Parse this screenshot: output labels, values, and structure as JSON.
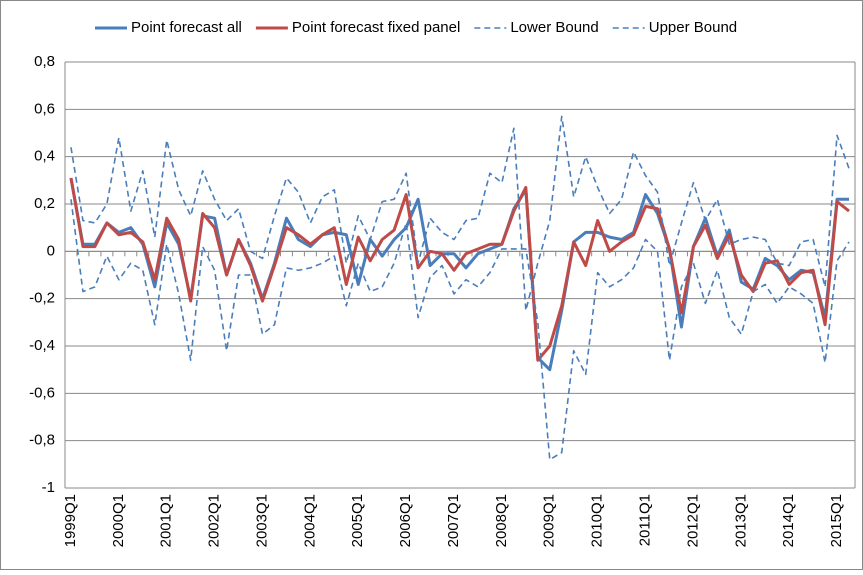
{
  "chart_data": {
    "type": "line",
    "categories": [
      "1999Q1",
      null,
      null,
      null,
      "2000Q1",
      null,
      null,
      null,
      "2001Q1",
      null,
      null,
      null,
      "2002Q1",
      null,
      null,
      null,
      "2003Q1",
      null,
      null,
      null,
      "2004Q1",
      null,
      null,
      null,
      "2005Q1",
      null,
      null,
      null,
      "2006Q1",
      null,
      null,
      null,
      "2007Q1",
      null,
      null,
      null,
      "2008Q1",
      null,
      null,
      null,
      "2009Q1",
      null,
      null,
      null,
      "2010Q1",
      null,
      null,
      null,
      "2011Q1",
      null,
      null,
      null,
      "2012Q1",
      null,
      null,
      null,
      "2013Q1",
      null,
      null,
      null,
      "2014Q1",
      null,
      null,
      null,
      "2015Q1",
      null
    ],
    "series": [
      {
        "name": "Point forecast all",
        "color": "#4a7ebb",
        "dashed": false,
        "values": [
          0.31,
          0.03,
          0.03,
          0.12,
          0.08,
          0.1,
          0.03,
          -0.15,
          0.12,
          0.03,
          -0.2,
          0.15,
          0.14,
          -0.1,
          0.05,
          -0.05,
          -0.2,
          -0.05,
          0.14,
          0.05,
          0.02,
          0.07,
          0.08,
          0.07,
          -0.14,
          0.05,
          -0.02,
          0.05,
          0.1,
          0.22,
          -0.06,
          -0.01,
          -0.01,
          -0.07,
          -0.01,
          0.01,
          0.03,
          0.18,
          0.26,
          -0.45,
          -0.5,
          -0.25,
          0.04,
          0.08,
          0.08,
          0.06,
          0.05,
          0.08,
          0.24,
          0.16,
          0.01,
          -0.32,
          0.02,
          0.14,
          -0.02,
          0.09,
          -0.13,
          -0.16,
          -0.03,
          -0.06,
          -0.12,
          -0.08,
          -0.09,
          -0.28,
          0.22,
          0.22
        ]
      },
      {
        "name": "Point forecast fixed panel",
        "color": "#be4b48",
        "dashed": false,
        "values": [
          0.31,
          0.02,
          0.02,
          0.12,
          0.07,
          0.08,
          0.04,
          -0.12,
          0.14,
          0.05,
          -0.21,
          0.16,
          0.1,
          -0.1,
          0.05,
          -0.06,
          -0.21,
          -0.06,
          0.1,
          0.07,
          0.03,
          0.07,
          0.1,
          -0.14,
          0.06,
          -0.04,
          0.05,
          0.09,
          0.24,
          -0.07,
          0.0,
          -0.01,
          -0.08,
          -0.01,
          0.01,
          0.03,
          0.03,
          0.17,
          0.27,
          -0.46,
          -0.4,
          -0.23,
          0.04,
          -0.06,
          0.13,
          0.0,
          0.04,
          0.07,
          0.19,
          0.18,
          0.01,
          -0.26,
          0.02,
          0.11,
          -0.03,
          0.07,
          -0.1,
          -0.17,
          -0.05,
          -0.04,
          -0.14,
          -0.09,
          -0.08,
          -0.31,
          0.21,
          0.17
        ]
      },
      {
        "name": "Lower Bound",
        "color": "#4a7ebb",
        "dashed": true,
        "values": [
          0.22,
          -0.17,
          -0.15,
          -0.02,
          -0.12,
          -0.05,
          -0.08,
          -0.31,
          0.03,
          -0.18,
          -0.46,
          0.02,
          -0.08,
          -0.42,
          -0.1,
          -0.1,
          -0.35,
          -0.31,
          -0.07,
          -0.08,
          -0.07,
          -0.05,
          -0.02,
          -0.23,
          -0.05,
          -0.17,
          -0.15,
          -0.05,
          0.12,
          -0.28,
          -0.11,
          -0.06,
          -0.18,
          -0.12,
          -0.15,
          -0.09,
          0.01,
          0.01,
          0.01,
          -0.3,
          -0.88,
          -0.85,
          -0.42,
          -0.52,
          -0.09,
          -0.15,
          -0.12,
          -0.07,
          0.05,
          0.0,
          -0.46,
          -0.15,
          -0.05,
          -0.22,
          -0.08,
          -0.28,
          -0.35,
          -0.17,
          -0.14,
          -0.22,
          -0.15,
          -0.18,
          -0.22,
          -0.47,
          -0.04,
          0.04
        ]
      },
      {
        "name": "Upper Bound",
        "color": "#4a7ebb",
        "dashed": true,
        "values": [
          0.44,
          0.13,
          0.12,
          0.2,
          0.48,
          0.17,
          0.34,
          0.06,
          0.47,
          0.26,
          0.15,
          0.34,
          0.22,
          0.13,
          0.18,
          0.0,
          -0.03,
          0.15,
          0.31,
          0.25,
          0.12,
          0.23,
          0.26,
          -0.05,
          0.15,
          0.05,
          0.21,
          0.22,
          0.33,
          -0.05,
          0.14,
          0.08,
          0.05,
          0.13,
          0.14,
          0.33,
          0.29,
          0.52,
          -0.25,
          -0.05,
          0.13,
          0.57,
          0.23,
          0.4,
          0.27,
          0.16,
          0.22,
          0.42,
          0.32,
          0.25,
          -0.06,
          0.12,
          0.29,
          0.13,
          0.22,
          0.03,
          0.05,
          0.06,
          0.05,
          -0.05,
          -0.06,
          0.04,
          0.05,
          -0.15,
          0.49,
          0.35
        ]
      }
    ],
    "ylim": [
      -1,
      0.8
    ],
    "yticks": [
      -1,
      {
        "value": -0.8,
        "label": "-0,8"
      },
      {
        "value": -0.6,
        "label": "-0,6"
      },
      {
        "value": -0.4,
        "label": "-0,4"
      },
      {
        "value": -0.2,
        "label": "-0,2"
      },
      0,
      {
        "value": 0.2,
        "label": "0,2"
      },
      {
        "value": 0.4,
        "label": "0,4"
      },
      {
        "value": 0.6,
        "label": "0,6"
      },
      {
        "value": 0.8,
        "label": "0,8"
      }
    ],
    "grid": true,
    "legend": "top"
  }
}
